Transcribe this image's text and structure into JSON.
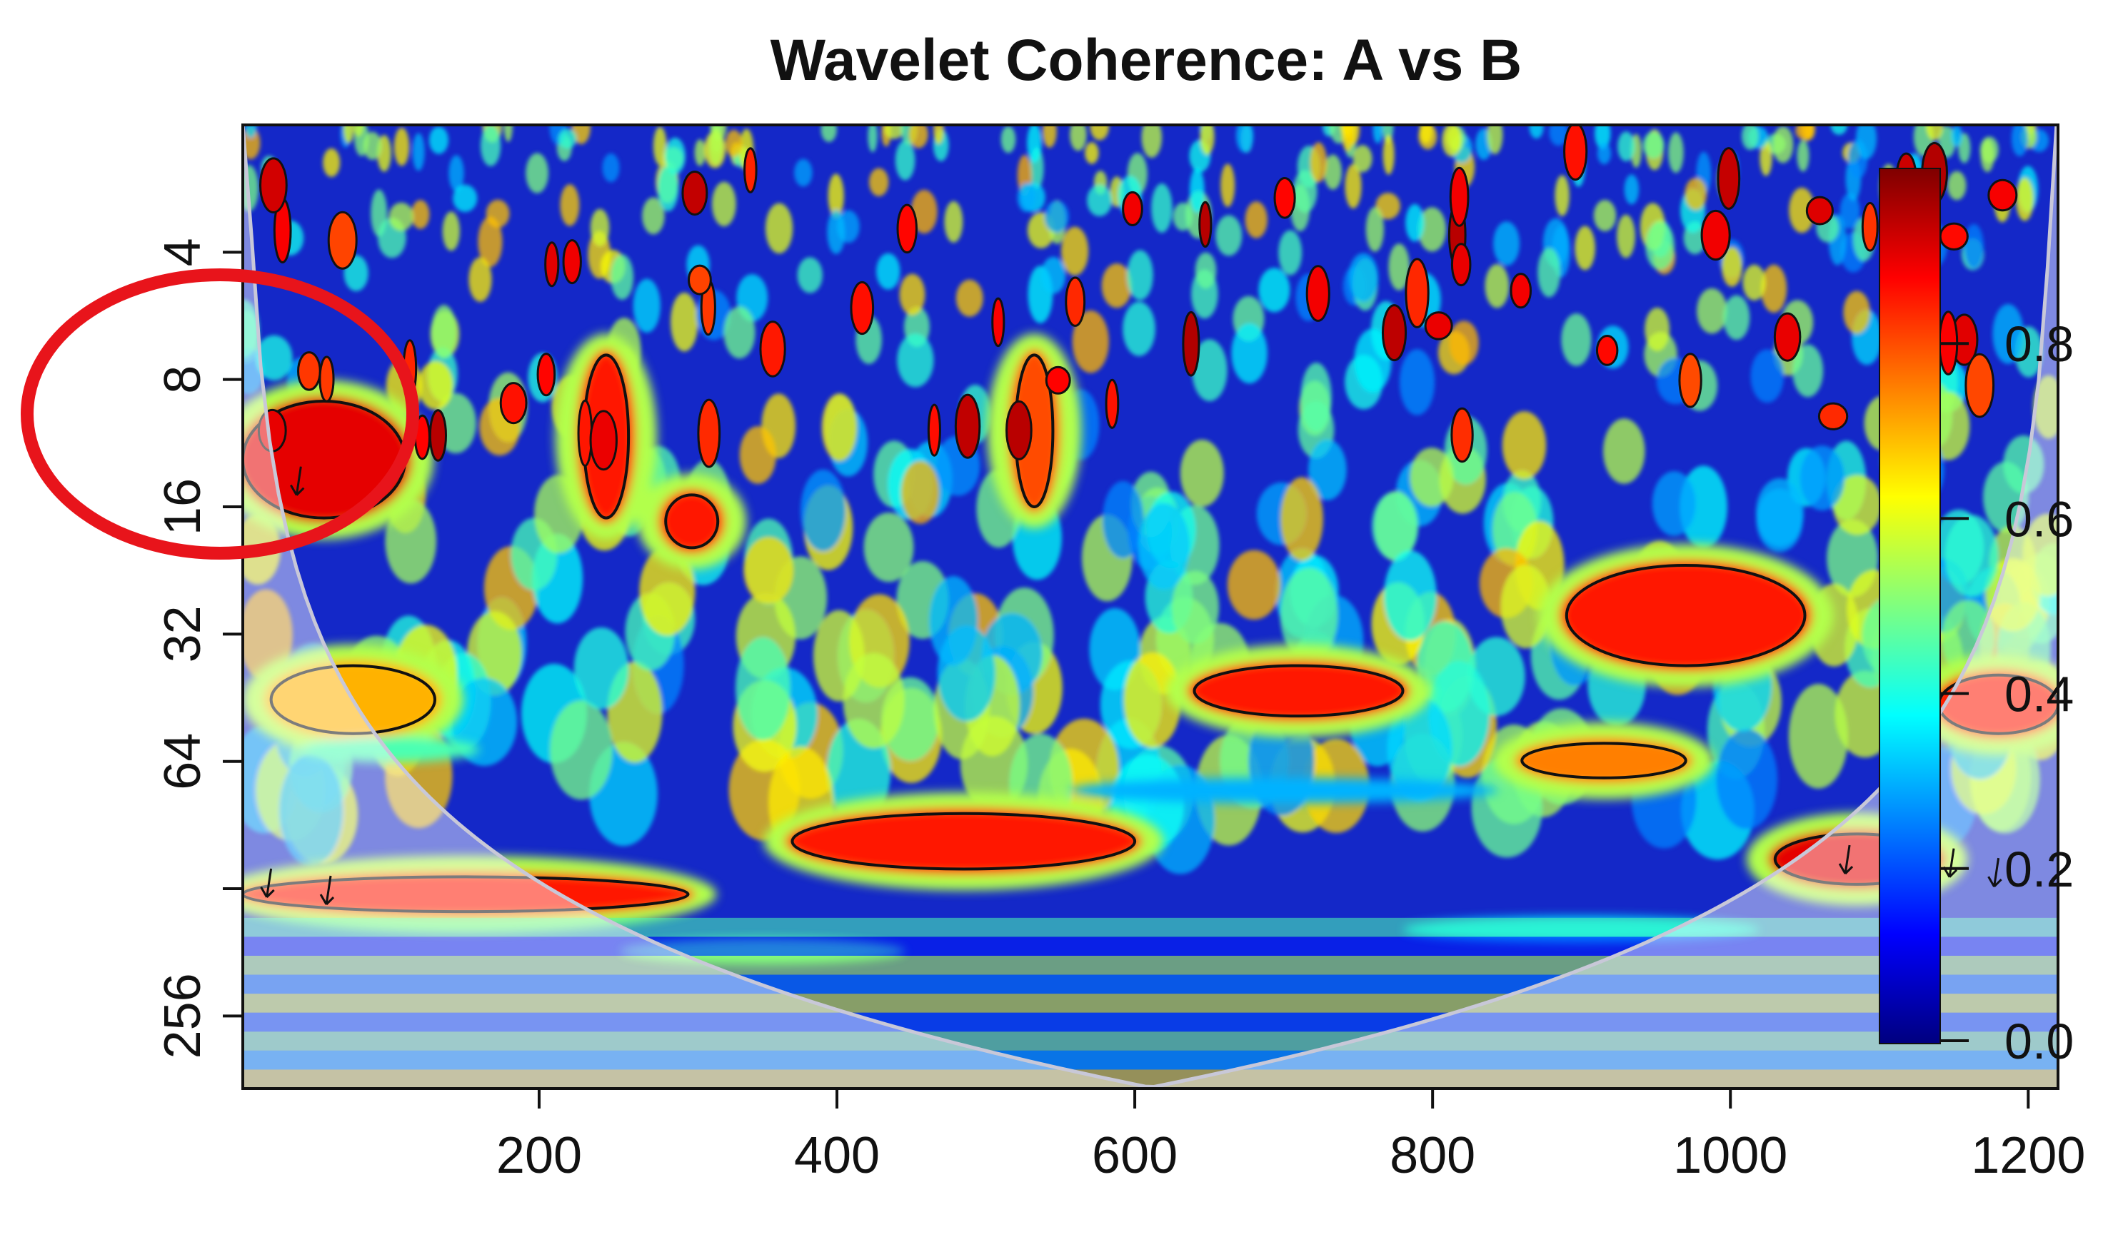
{
  "chart_data": {
    "type": "heatmap",
    "title": "Wavelet Coherence: A vs B",
    "xlabel": "",
    "ylabel": "",
    "x_ticks": [
      200,
      400,
      600,
      800,
      1000,
      1200
    ],
    "y_ticks": [
      4,
      8,
      16,
      32,
      64,
      128,
      256
    ],
    "y_tick_labels": [
      "4",
      "8",
      "16",
      "32",
      "64",
      "",
      "256"
    ],
    "y_scale": "log2",
    "y_reversed": true,
    "xlim": [
      1,
      1220
    ],
    "ylim": [
      2,
      380
    ],
    "colorbar": {
      "ticks": [
        0.0,
        0.2,
        0.4,
        0.6,
        0.8
      ],
      "tick_labels": [
        "0.0",
        "0.2",
        "0.4",
        "0.6",
        "0.8"
      ],
      "range": [
        0,
        1
      ],
      "colors": [
        "#00007f",
        "#0000ff",
        "#007fff",
        "#00ffff",
        "#7fff7f",
        "#ffff00",
        "#ff7f00",
        "#ff0000",
        "#7f0000"
      ]
    },
    "cone_of_influence": true,
    "annotation": {
      "shape": "circle",
      "color": "#e8141b",
      "target": "high coherence at x≈1–110, period 8–16"
    },
    "regions": [
      {
        "x": [
          1,
          110
        ],
        "period": [
          9,
          17
        ],
        "coherence": 0.9,
        "significant": true
      },
      {
        "x": [
          1,
          300
        ],
        "period": [
          120,
          145
        ],
        "coherence": 0.85,
        "significant": true
      },
      {
        "x": [
          370,
          600
        ],
        "period": [
          85,
          115
        ],
        "coherence": 0.85,
        "significant": true
      },
      {
        "x": [
          640,
          780
        ],
        "period": [
          38,
          50
        ],
        "coherence": 0.85,
        "significant": true
      },
      {
        "x": [
          890,
          1050
        ],
        "period": [
          22,
          38
        ],
        "coherence": 0.85,
        "significant": true
      },
      {
        "x": [
          860,
          970
        ],
        "period": [
          58,
          70
        ],
        "coherence": 0.75,
        "significant": true
      },
      {
        "x": [
          1030,
          1140
        ],
        "period": [
          95,
          125
        ],
        "coherence": 0.9,
        "significant": true
      },
      {
        "x": [
          1140,
          1220
        ],
        "period": [
          40,
          55
        ],
        "coherence": 0.85,
        "significant": true
      },
      {
        "x": [
          20,
          130
        ],
        "period": [
          38,
          55
        ],
        "coherence": 0.7,
        "significant": true
      },
      {
        "x": [
          230,
          260
        ],
        "period": [
          7,
          17
        ],
        "coherence": 0.85,
        "significant": true
      },
      {
        "x": [
          285,
          320
        ],
        "period": [
          15,
          20
        ],
        "coherence": 0.85,
        "significant": true
      },
      {
        "x": [
          520,
          545
        ],
        "period": [
          7,
          16
        ],
        "coherence": 0.8,
        "significant": true
      }
    ]
  }
}
